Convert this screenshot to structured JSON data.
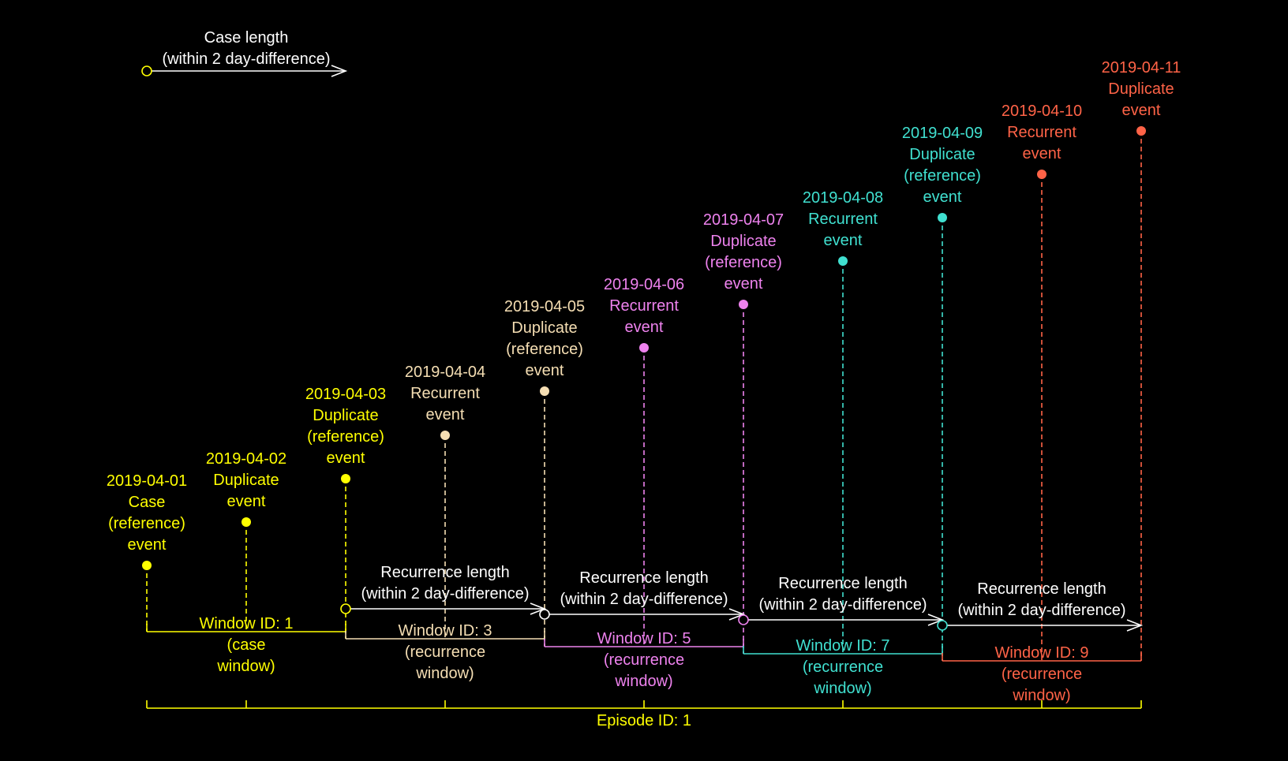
{
  "colors": {
    "white": "#ffffff",
    "yellow": "#ffff00",
    "beige": "#f5deb3",
    "violet": "#ee82ee",
    "turquoise": "#40e0d0",
    "tomato": "#ff6347"
  },
  "legend": {
    "line1": "Case length",
    "line2": "(within 2 day-difference)"
  },
  "events": [
    {
      "date": "2019-04-01",
      "lines": [
        "Case",
        "(reference)",
        "event"
      ],
      "color": "yellow"
    },
    {
      "date": "2019-04-02",
      "lines": [
        "Duplicate",
        "event"
      ],
      "color": "yellow"
    },
    {
      "date": "2019-04-03",
      "lines": [
        "Duplicate",
        "(reference)",
        "event"
      ],
      "color": "yellow"
    },
    {
      "date": "2019-04-04",
      "lines": [
        "Recurrent",
        "event"
      ],
      "color": "beige"
    },
    {
      "date": "2019-04-05",
      "lines": [
        "Duplicate",
        "(reference)",
        "event"
      ],
      "color": "beige"
    },
    {
      "date": "2019-04-06",
      "lines": [
        "Recurrent",
        "event"
      ],
      "color": "violet"
    },
    {
      "date": "2019-04-07",
      "lines": [
        "Duplicate",
        "(reference)",
        "event"
      ],
      "color": "violet"
    },
    {
      "date": "2019-04-08",
      "lines": [
        "Recurrent",
        "event"
      ],
      "color": "turquoise"
    },
    {
      "date": "2019-04-09",
      "lines": [
        "Duplicate",
        "(reference)",
        "event"
      ],
      "color": "turquoise"
    },
    {
      "date": "2019-04-10",
      "lines": [
        "Recurrent",
        "event"
      ],
      "color": "tomato"
    },
    {
      "date": "2019-04-11",
      "lines": [
        "Duplicate",
        "event"
      ],
      "color": "tomato"
    }
  ],
  "recurrence_lengths": [
    {
      "lines": [
        "Recurrence length",
        "(within 2 day-difference)"
      ],
      "from_event": 2,
      "to_event": 4,
      "start_color": "yellow"
    },
    {
      "lines": [
        "Recurrence length",
        "(within 2 day-difference)"
      ],
      "from_event": 4,
      "to_event": 6,
      "start_color": "white"
    },
    {
      "lines": [
        "Recurrence length",
        "(within 2 day-difference)"
      ],
      "from_event": 6,
      "to_event": 8,
      "start_color": "violet"
    },
    {
      "lines": [
        "Recurrence length",
        "(within 2 day-difference)"
      ],
      "from_event": 8,
      "to_event": 10,
      "start_color": "turquoise"
    }
  ],
  "windows": [
    {
      "lines": [
        "Window ID: 1",
        "(case",
        "window)"
      ],
      "from_event": 0,
      "to_event": 2,
      "color": "yellow"
    },
    {
      "lines": [
        "Window ID: 3",
        "(recurrence",
        "window)"
      ],
      "from_event": 2,
      "to_event": 4,
      "color": "beige"
    },
    {
      "lines": [
        "Window ID: 5",
        "(recurrence",
        "window)"
      ],
      "from_event": 4,
      "to_event": 6,
      "color": "violet"
    },
    {
      "lines": [
        "Window ID: 7",
        "(recurrence",
        "window)"
      ],
      "from_event": 6,
      "to_event": 8,
      "color": "turquoise"
    },
    {
      "lines": [
        "Window ID: 9",
        "(recurrence",
        "window)"
      ],
      "from_event": 8,
      "to_event": 10,
      "color": "tomato"
    }
  ],
  "episode": {
    "label": "Episode ID: 1",
    "color": "yellow",
    "tick_events": [
      0,
      1,
      3,
      5,
      7,
      9,
      10
    ]
  }
}
